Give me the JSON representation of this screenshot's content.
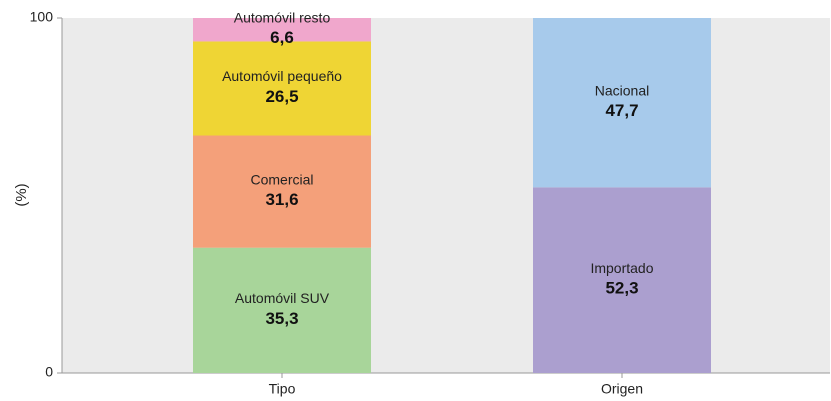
{
  "chart_data": {
    "type": "stacked_bar",
    "categories": [
      "Tipo",
      "Origen"
    ],
    "series": [
      {
        "name": "Automóvil SUV",
        "color": "#a8d59a",
        "values": [
          35.3,
          null
        ],
        "value_labels": [
          "35,3",
          null
        ]
      },
      {
        "name": "Comercial",
        "color": "#f4a07a",
        "values": [
          31.6,
          null
        ],
        "value_labels": [
          "31,6",
          null
        ]
      },
      {
        "name": "Automóvil pequeño",
        "color": "#efd534",
        "values": [
          26.5,
          null
        ],
        "value_labels": [
          "26,5",
          null
        ]
      },
      {
        "name": "Automóvil resto",
        "color": "#f0a7cc",
        "values": [
          6.6,
          null
        ],
        "value_labels": [
          "6,6",
          null
        ]
      },
      {
        "name": "Importado",
        "color": "#ab9fcf",
        "values": [
          null,
          52.3
        ],
        "value_labels": [
          null,
          "52,3"
        ]
      },
      {
        "name": "Nacional",
        "color": "#a7caeb",
        "values": [
          null,
          47.7
        ],
        "value_labels": [
          null,
          "47,7"
        ]
      }
    ],
    "ylabel": "(%)",
    "ylim": [
      0,
      100
    ],
    "yticks": [
      0,
      100
    ]
  }
}
